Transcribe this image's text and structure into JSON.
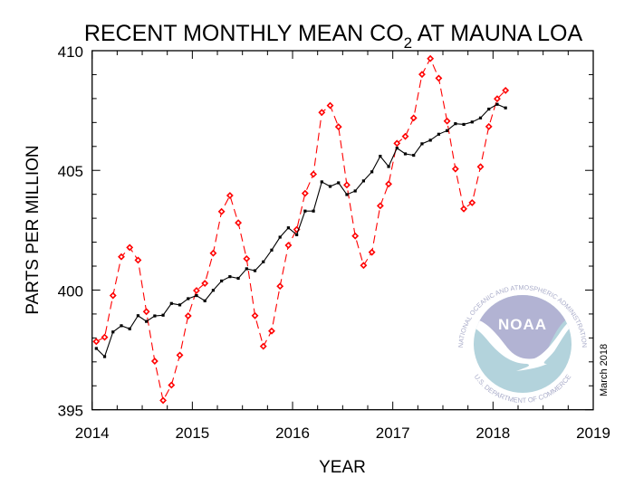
{
  "chart_data": {
    "type": "line",
    "title_parts": [
      "RECENT MONTHLY MEAN CO",
      "2",
      " AT MAUNA LOA"
    ],
    "xlabel": "YEAR",
    "ylabel": "PARTS PER MILLION",
    "xlim": [
      2014,
      2019
    ],
    "ylim": [
      395,
      410
    ],
    "x_ticks": [
      "2014",
      "2015",
      "2016",
      "2017",
      "2018",
      "2019"
    ],
    "y_ticks": [
      "395",
      "400",
      "405",
      "410"
    ],
    "grid": false,
    "x_start": "2014-01",
    "x_step": "monthly",
    "series": [
      {
        "color": "#ff0000",
        "style": "dashed",
        "marker": "diamond",
        "values": [
          397.85,
          398.03,
          399.77,
          401.39,
          401.78,
          401.25,
          399.1,
          397.03,
          395.39,
          396.03,
          397.28,
          398.92,
          399.98,
          400.28,
          401.54,
          403.28,
          403.95,
          402.81,
          401.31,
          398.93,
          397.65,
          398.29,
          400.16,
          401.87,
          402.53,
          404.04,
          404.84,
          407.42,
          407.71,
          406.82,
          404.39,
          402.26,
          401.03,
          401.58,
          403.52,
          404.43,
          406.13,
          406.42,
          407.19,
          409.01,
          409.67,
          408.85,
          407.06,
          405.06,
          403.39,
          403.65,
          405.15,
          406.83,
          407.99,
          408.34
        ]
      },
      {
        "color": "#000000",
        "style": "solid",
        "marker": "square",
        "values": [
          397.56,
          397.22,
          398.25,
          398.51,
          398.38,
          398.93,
          398.69,
          398.92,
          398.95,
          399.44,
          399.38,
          399.64,
          399.77,
          399.55,
          399.99,
          400.38,
          400.56,
          400.49,
          400.89,
          400.81,
          401.18,
          401.67,
          402.21,
          402.6,
          402.31,
          403.3,
          403.3,
          404.52,
          404.33,
          404.48,
          403.99,
          404.14,
          404.56,
          404.94,
          405.59,
          405.16,
          405.93,
          405.69,
          405.63,
          406.11,
          406.26,
          406.51,
          406.66,
          406.95,
          406.92,
          407.02,
          407.19,
          407.56,
          407.76,
          407.61
        ]
      }
    ]
  },
  "date_stamp": "March 2018",
  "logo": {
    "name": "NOAA",
    "top_text": "NATIONAL OCEANIC AND ATMOSPHERIC ADMINISTRATION",
    "bottom_text": "U.S. DEPARTMENT OF COMMERCE",
    "colors": {
      "top": "#b2b3d3",
      "bottom": "#b3d3dc",
      "ring_text": "#a9acc9"
    }
  }
}
